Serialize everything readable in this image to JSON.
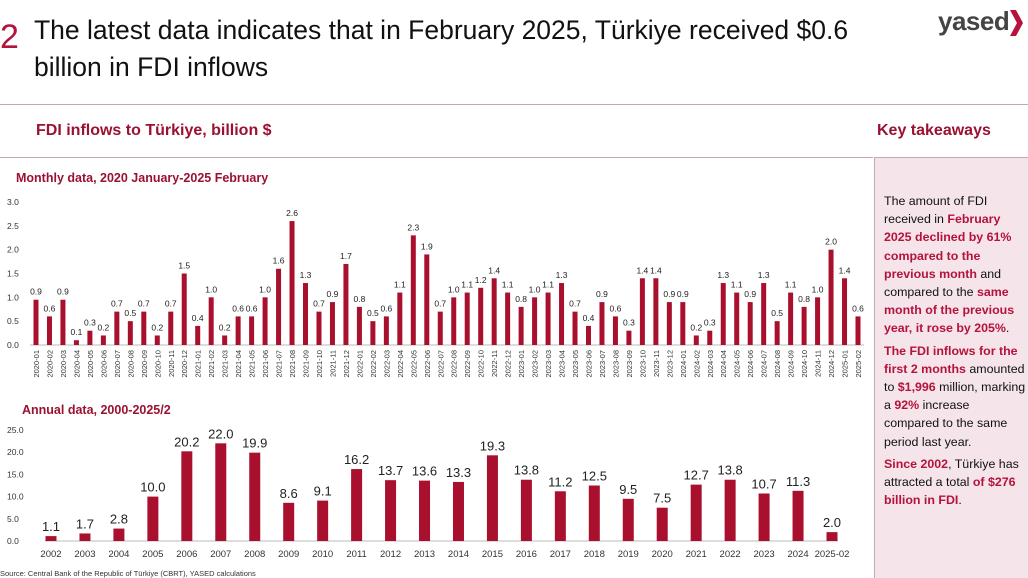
{
  "slide_number": "2",
  "headline": "The latest data indicates that in February 2025, Türkiye received $0.6 billion in FDI inflows",
  "logo": {
    "text": "yased",
    "icon": "chevron-logo-icon",
    "color": "#b5123c"
  },
  "section_title": "FDI inflows to Türkiye, billion $",
  "key_takeaways": {
    "title": "Key takeaways",
    "p1": {
      "t1": "The amount of FDI received in ",
      "h1": "February 2025 declined by 61% compared to the previous month",
      "t2": " and compared to the ",
      "h2": "same month of the previous year, it rose by 205%",
      "t3": "."
    },
    "p2": {
      "h1": "The FDI inflows for the first 2 months",
      "t1": " amounted to ",
      "h2": "$1,996",
      "t2": " million, marking a ",
      "h3": "92%",
      "t3": " increase compared to the same period last year."
    },
    "p3": {
      "h1": "Since 2002",
      "t1": ", Türkiye has attracted a total ",
      "h2": "of $276 billion in FDI",
      "t2": "."
    }
  },
  "source": "Source: Central Bank of the Republic of Türkiye (CBRT), YASED calculations",
  "colors": {
    "bar": "#a8102e",
    "accent": "#9b1131",
    "panel": "#f5e4e9"
  },
  "chart_data": [
    {
      "type": "bar",
      "title": "Monthly data, 2020 January-2025 February",
      "ylim": [
        0,
        3.0
      ],
      "yticks": [
        "0.0",
        "0.5",
        "1.0",
        "1.5",
        "2.0",
        "2.5",
        "3.0"
      ],
      "grid": false,
      "categories": [
        "2020-01",
        "2020-02",
        "2020-03",
        "2020-04",
        "2020-05",
        "2020-06",
        "2020-07",
        "2020-08",
        "2020-09",
        "2020-10",
        "2020-11",
        "2020-12",
        "2021-01",
        "2021-02",
        "2021-03",
        "2021-04",
        "2021-05",
        "2021-06",
        "2021-07",
        "2021-08",
        "2021-09",
        "2021-10",
        "2021-11",
        "2021-12",
        "2022-01",
        "2022-02",
        "2022-03",
        "2022-04",
        "2022-05",
        "2022-06",
        "2022-07",
        "2022-08",
        "2022-09",
        "2022-10",
        "2022-11",
        "2022-12",
        "2023-01",
        "2023-02",
        "2023-03",
        "2023-04",
        "2023-05",
        "2023-06",
        "2023-07",
        "2023-08",
        "2023-09",
        "2023-10",
        "2023-11",
        "2023-12",
        "2024-01",
        "2024-02",
        "2024-03",
        "2024-04",
        "2024-05",
        "2024-06",
        "2024-07",
        "2024-08",
        "2024-09",
        "2024-10",
        "2024-11",
        "2024-12",
        "2025-01",
        "2025-02"
      ],
      "values": [
        0.95,
        0.6,
        0.95,
        0.1,
        0.3,
        0.2,
        0.7,
        0.5,
        0.7,
        0.2,
        0.7,
        1.5,
        0.4,
        1.0,
        0.2,
        0.6,
        0.6,
        1.0,
        1.6,
        2.6,
        1.3,
        0.7,
        0.9,
        1.7,
        0.8,
        0.5,
        0.6,
        1.1,
        2.3,
        1.9,
        0.7,
        1.0,
        1.1,
        1.2,
        1.4,
        1.1,
        0.8,
        1.0,
        1.1,
        1.3,
        0.7,
        0.4,
        0.9,
        0.6,
        0.3,
        1.4,
        1.4,
        0.9,
        0.9,
        0.2,
        0.3,
        1.3,
        1.1,
        0.9,
        1.3,
        0.5,
        1.1,
        0.8,
        1.0,
        2.0,
        1.4,
        0.6
      ],
      "labels": [
        "0.9",
        "0.6",
        "0.9",
        "0.1",
        "0.3",
        "0.2",
        "0.7",
        "0.5",
        "0.7",
        "0.2",
        "0.7",
        "1.5",
        "0.4",
        "1.0",
        "0.2",
        "0.6",
        "0.6",
        "1.0",
        "1.6",
        "2.6",
        "1.3",
        "0.7",
        "0.9",
        "1.7",
        "0.8",
        "0.5",
        "0.6",
        "1.1",
        "2.3",
        "1.9",
        "0.7",
        "1.0",
        "1.1",
        "1.2",
        "1.4",
        "1.1",
        "0.8",
        "1.0",
        "1.1",
        "1.3",
        "0.7",
        "0.4",
        "0.9",
        "0.6",
        "0.3",
        "1.4",
        "1.4",
        "0.9",
        "0.9",
        "0.2",
        "0.3",
        "1.3",
        "1.1",
        "0.9",
        "1.3",
        "0.5",
        "1.1",
        "0.8",
        "1.0",
        "2.0",
        "1.4",
        "0.6"
      ]
    },
    {
      "type": "bar",
      "title": "Annual data, 2000-2025/2",
      "ylim": [
        0,
        25.0
      ],
      "yticks": [
        "0.0",
        "5.0",
        "10.0",
        "15.0",
        "20.0",
        "25.0"
      ],
      "grid": false,
      "categories": [
        "2002",
        "2003",
        "2004",
        "2005",
        "2006",
        "2007",
        "2008",
        "2009",
        "2010",
        "2011",
        "2012",
        "2013",
        "2014",
        "2015",
        "2016",
        "2017",
        "2018",
        "2019",
        "2020",
        "2021",
        "2022",
        "2023",
        "2024",
        "2025-02"
      ],
      "values": [
        1.1,
        1.7,
        2.8,
        10.0,
        20.2,
        22.0,
        19.9,
        8.6,
        9.1,
        16.2,
        13.7,
        13.6,
        13.3,
        19.3,
        13.8,
        11.2,
        12.5,
        9.5,
        7.5,
        12.7,
        13.8,
        10.7,
        11.3,
        2.0
      ],
      "labels": [
        "1.1",
        "1.7",
        "2.8",
        "10.0",
        "20.2",
        "22.0",
        "19.9",
        "8.6",
        "9.1",
        "16.2",
        "13.7",
        "13.6",
        "13.3",
        "19.3",
        "13.8",
        "11.2",
        "12.5",
        "9.5",
        "7.5",
        "12.7",
        "13.8",
        "10.7",
        "11.3",
        "2.0"
      ]
    }
  ]
}
